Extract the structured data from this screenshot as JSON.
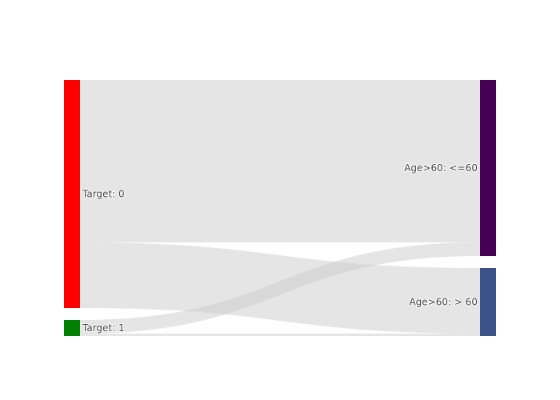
{
  "chart_data": {
    "type": "sankey",
    "title": "",
    "nodes": [
      {
        "id": "t0",
        "label": "Target: 0",
        "color": "#ff0000"
      },
      {
        "id": "t1",
        "label": "Target: 1",
        "color": "#008000"
      },
      {
        "id": "a_le60",
        "label": "Age>60: <=60",
        "color": "#440154"
      },
      {
        "id": "a_gt60",
        "label": "Age>60: > 60",
        "color": "#3b528b"
      }
    ],
    "links": [
      {
        "source": "t0",
        "target": "a_le60",
        "value": 203
      },
      {
        "source": "t0",
        "target": "a_gt60",
        "value": 82
      },
      {
        "source": "t1",
        "target": "a_le60",
        "value": 17
      },
      {
        "source": "t1",
        "target": "a_gt60",
        "value": 3
      }
    ],
    "link_color": "#cccccc"
  }
}
